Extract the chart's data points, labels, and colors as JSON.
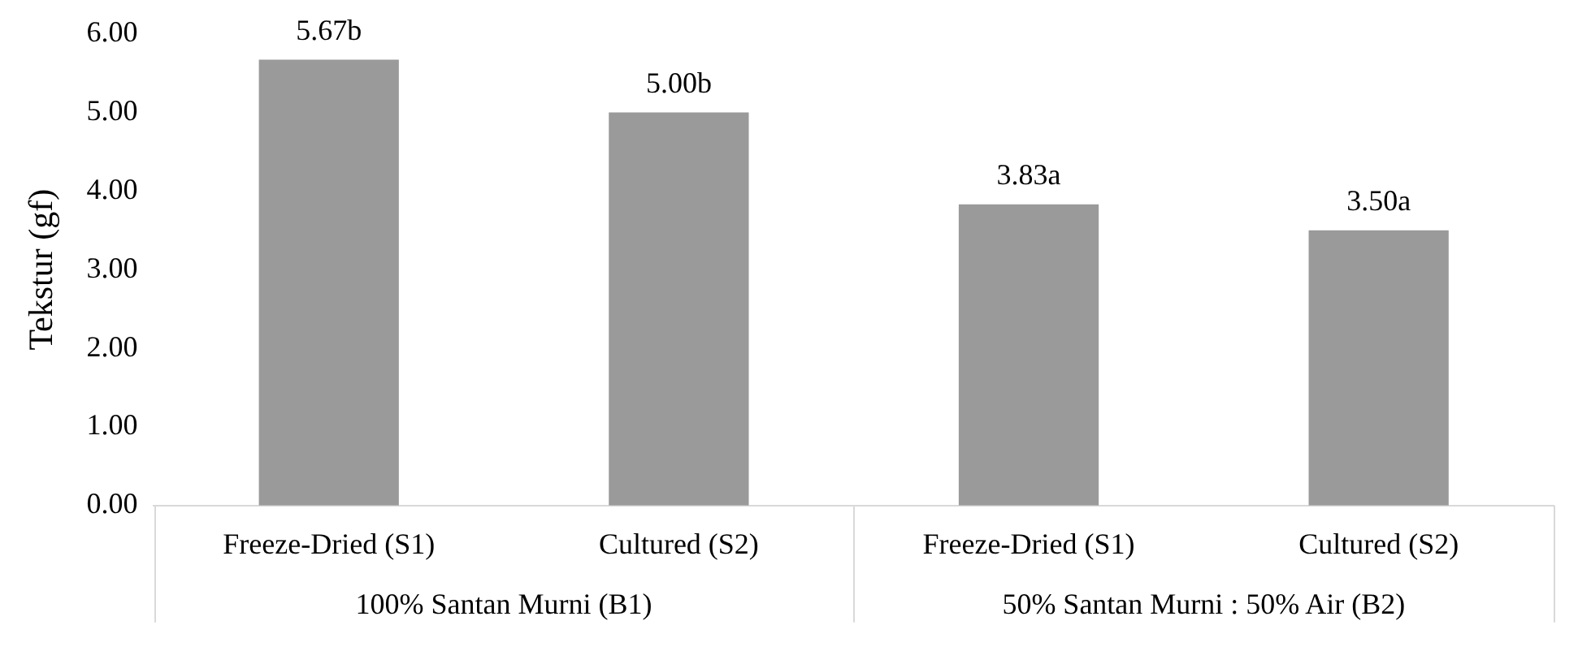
{
  "chart_data": {
    "type": "bar",
    "ylabel": "Tekstur (gf)",
    "categories": [
      "Freeze-Dried (S1)",
      "Cultured (S2)",
      "Freeze-Dried (S1)",
      "Cultured (S2)"
    ],
    "values": [
      5.67,
      5.0,
      3.83,
      3.5
    ],
    "value_labels": [
      "5.67b",
      "5.00b",
      "3.83a",
      "3.50a"
    ],
    "color": "#9a9a9a",
    "ylim": [
      0,
      6
    ],
    "yticks": [
      {
        "value": 0,
        "label": "0.00"
      },
      {
        "value": 1,
        "label": "1.00"
      },
      {
        "value": 2,
        "label": "2.00"
      },
      {
        "value": 3,
        "label": "3.00"
      },
      {
        "value": 4,
        "label": "4.00"
      },
      {
        "value": 5,
        "label": "5.00"
      },
      {
        "value": 6,
        "label": "6.00"
      }
    ],
    "annotations": [
      "100% Santan Murni (B1)",
      "50% Santan Murni : 50% Air (B2)"
    ],
    "grid": false,
    "legend": false
  }
}
